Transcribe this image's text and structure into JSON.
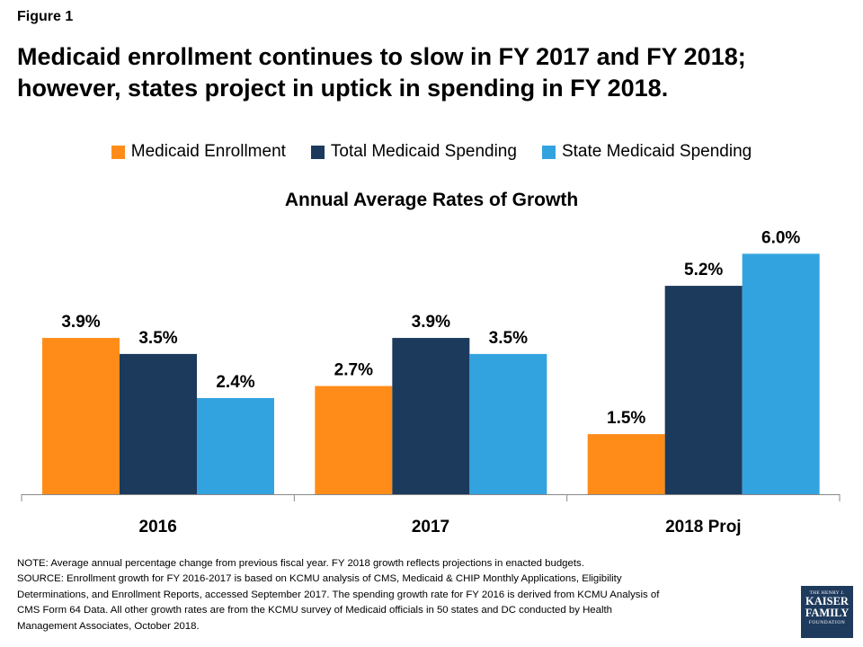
{
  "figure_label": "Figure 1",
  "title_line1": "Medicaid enrollment continues to slow in FY 2017 and FY 2018;",
  "title_line2": "however, states project in uptick in spending in FY 2018.",
  "colors": {
    "enrollment": "#FF8C19",
    "total_spending": "#1B3A5C",
    "state_spending": "#33A3E0",
    "axis": "#888888"
  },
  "chart_data": {
    "type": "bar",
    "title": "Annual Average Rates of Growth",
    "xlabel": "",
    "ylabel": "",
    "ylim": [
      0,
      7
    ],
    "categories": [
      "2016",
      "2017",
      "2018 Proj"
    ],
    "series": [
      {
        "name": "Medicaid Enrollment",
        "values": [
          3.9,
          2.7,
          1.5
        ],
        "labels": [
          "3.9%",
          "2.7%",
          "1.5%"
        ]
      },
      {
        "name": "Total Medicaid Spending",
        "values": [
          3.5,
          3.9,
          5.2
        ],
        "labels": [
          "3.5%",
          "3.9%",
          "5.2%"
        ]
      },
      {
        "name": "State Medicaid Spending",
        "values": [
          2.4,
          3.5,
          6.0
        ],
        "labels": [
          "2.4%",
          "3.5%",
          "6.0%"
        ]
      }
    ],
    "legend_position": "top-center",
    "grid": false
  },
  "notes": {
    "line1": "NOTE: Average annual percentage change from previous fiscal year. FY 2018  growth reflects projections in enacted budgets.",
    "line2": "SOURCE: Enrollment growth for FY 2016-2017  is based on KCMU analysis of CMS, Medicaid & CHIP Monthly Applications, Eligibility",
    "line3": "Determinations, and Enrollment Reports, accessed September 2017.  The spending growth rate for FY 2016  is derived from KCMU Analysis of",
    "line4": "CMS Form 64 Data.  All other growth rates are from the KCMU survey of Medicaid officials in 50 states and DC conducted by Health",
    "line5": "Management Associates, October 2018."
  },
  "logo": {
    "line1": "THE HENRY J.",
    "line2": "KAISER",
    "line3": "FAMILY",
    "line4": "FOUNDATION"
  }
}
